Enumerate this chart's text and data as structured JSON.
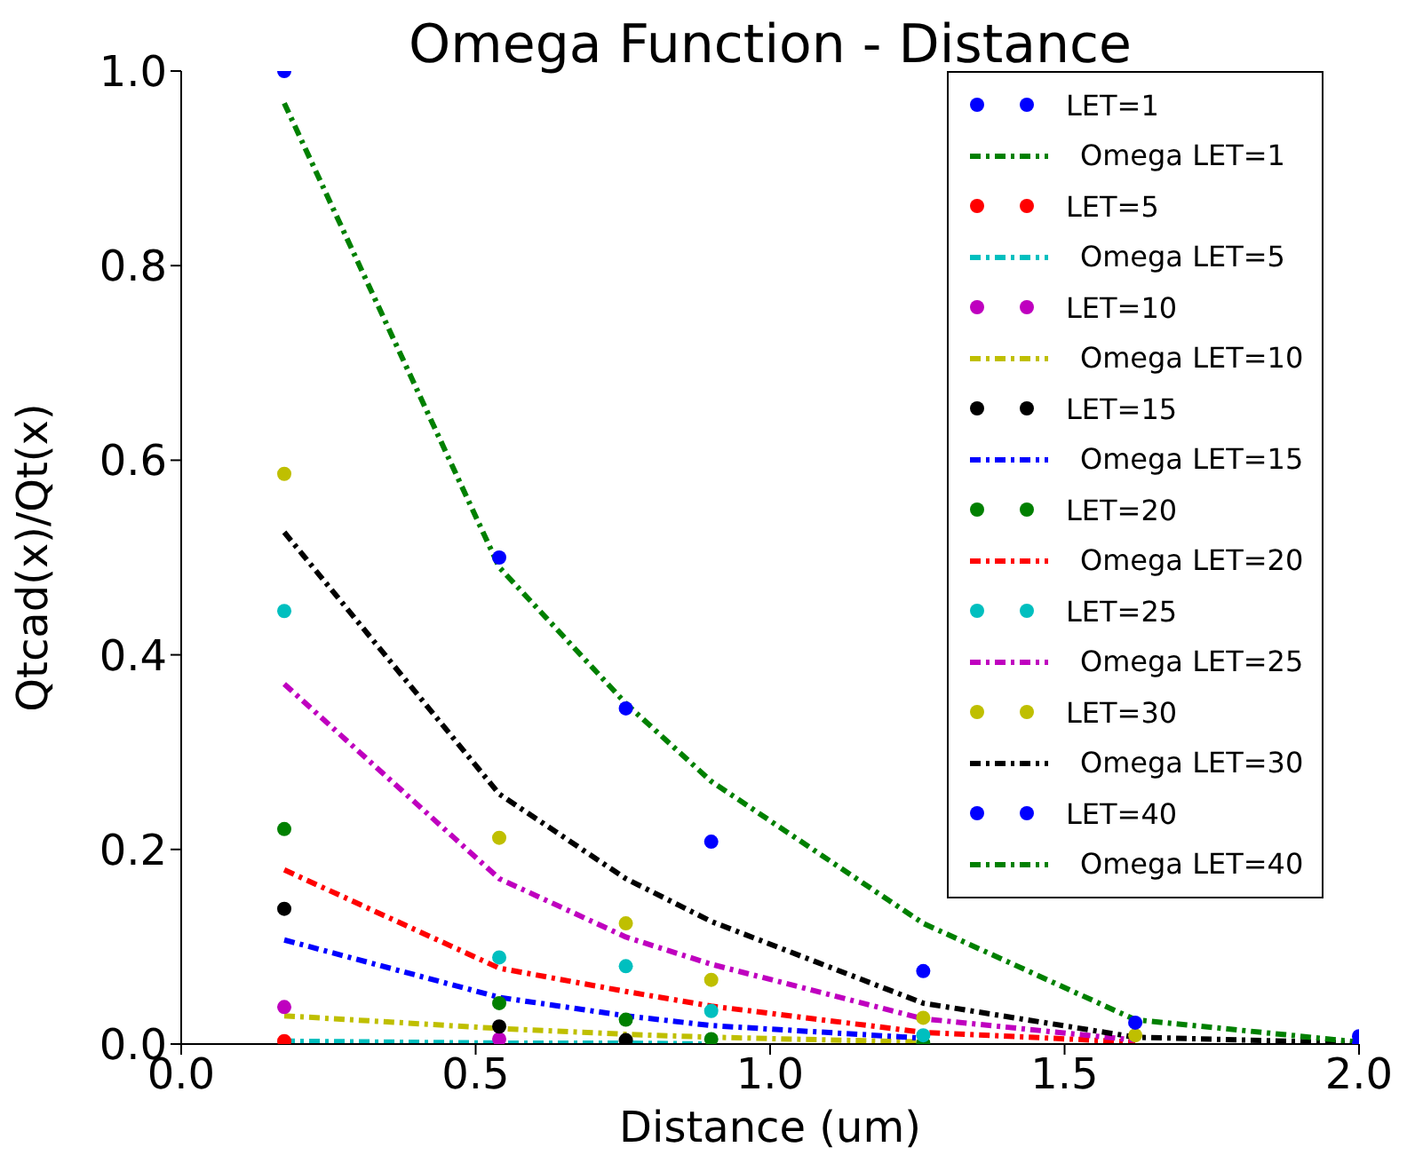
{
  "chart_data": {
    "type": "line",
    "title": "Omega Function - Distance",
    "xlabel": "Distance (um)",
    "ylabel": "Qtcad(x)/Qt(x)",
    "x": [
      0.175,
      0.54,
      0.755,
      0.9,
      1.26,
      1.62,
      2.0
    ],
    "xlim": [
      0,
      2
    ],
    "xticks": [
      {
        "value": 0,
        "label": "0.0"
      },
      0.5,
      {
        "value": 1,
        "label": "1.0"
      },
      1.5,
      {
        "value": 2,
        "label": "2.0"
      }
    ],
    "ylim": [
      0,
      1
    ],
    "yticks": [
      {
        "value": 0,
        "label": "0.0"
      },
      0.2,
      0.4,
      0.6,
      0.8,
      {
        "value": 1,
        "label": "1.0"
      }
    ],
    "legend": "top right",
    "series": [
      {
        "name": "LET=1",
        "type": "scatter",
        "marker": "circle",
        "color": "#0000ff",
        "values": [
          null,
          null,
          null,
          null,
          null,
          null,
          0
        ]
      },
      {
        "name": "Omega LET=1",
        "type": "line",
        "line_style": "dashed",
        "color": "#008000",
        "values": [
          null,
          null,
          null,
          null,
          null,
          null,
          null
        ]
      },
      {
        "name": "LET=5",
        "type": "scatter",
        "marker": "circle",
        "color": "#ff0000",
        "values": [
          0.003,
          null,
          null,
          null,
          null,
          null,
          null
        ]
      },
      {
        "name": "Omega LET=5",
        "type": "line",
        "line_style": "dashed",
        "color": "#00bfbf",
        "values": [
          0.003,
          0.001,
          0.001,
          0,
          null,
          null,
          null
        ]
      },
      {
        "name": "LET=10",
        "type": "scatter",
        "marker": "circle",
        "color": "#bf00bf",
        "values": [
          0.038,
          0.005,
          null,
          null,
          null,
          null,
          null
        ]
      },
      {
        "name": "Omega LET=10",
        "type": "line",
        "line_style": "dashed",
        "color": "#bfbf00",
        "values": [
          0.029,
          0.016,
          0.01,
          0.007,
          0.002,
          null,
          null
        ]
      },
      {
        "name": "LET=15",
        "type": "scatter",
        "marker": "circle",
        "color": "#000000",
        "values": [
          0.139,
          0.018,
          0.004,
          null,
          null,
          null,
          null
        ]
      },
      {
        "name": "Omega LET=15",
        "type": "line",
        "line_style": "dashed",
        "color": "#0000ff",
        "values": [
          0.107,
          0.048,
          0.029,
          0.019,
          0.006,
          null,
          null
        ]
      },
      {
        "name": "LET=20",
        "type": "scatter",
        "marker": "circle",
        "color": "#008000",
        "values": [
          0.221,
          0.042,
          0.025,
          0.005,
          0.001,
          null,
          null
        ]
      },
      {
        "name": "Omega LET=20",
        "type": "line",
        "line_style": "dashed",
        "color": "#ff0000",
        "values": [
          0.179,
          0.078,
          0.054,
          0.039,
          0.012,
          0.002,
          null
        ]
      },
      {
        "name": "LET=25",
        "type": "scatter",
        "marker": "circle",
        "color": "#00bfbf",
        "values": [
          0.445,
          0.089,
          0.08,
          0.034,
          0.009,
          null,
          null
        ]
      },
      {
        "name": "Omega LET=25",
        "type": "line",
        "line_style": "dashed",
        "color": "#bf00bf",
        "values": [
          0.37,
          0.17,
          0.11,
          0.082,
          0.026,
          0.004,
          null
        ]
      },
      {
        "name": "LET=30",
        "type": "scatter",
        "marker": "circle",
        "color": "#bfbf00",
        "values": [
          0.586,
          0.212,
          0.124,
          0.066,
          0.027,
          0.009,
          null
        ]
      },
      {
        "name": "Omega LET=30",
        "type": "line",
        "line_style": "dashed",
        "color": "#000000",
        "values": [
          0.526,
          0.257,
          0.17,
          0.126,
          0.042,
          0.007,
          0.001
        ]
      },
      {
        "name": "LET=40",
        "type": "scatter",
        "marker": "circle",
        "color": "#0000ff",
        "values": [
          1.0,
          0.5,
          0.345,
          0.208,
          0.075,
          0.022,
          0.008
        ]
      },
      {
        "name": "Omega LET=40",
        "type": "line",
        "line_style": "dashed",
        "color": "#008000",
        "values": [
          0.967,
          0.49,
          0.35,
          0.27,
          0.124,
          0.025,
          0.002
        ]
      }
    ]
  }
}
